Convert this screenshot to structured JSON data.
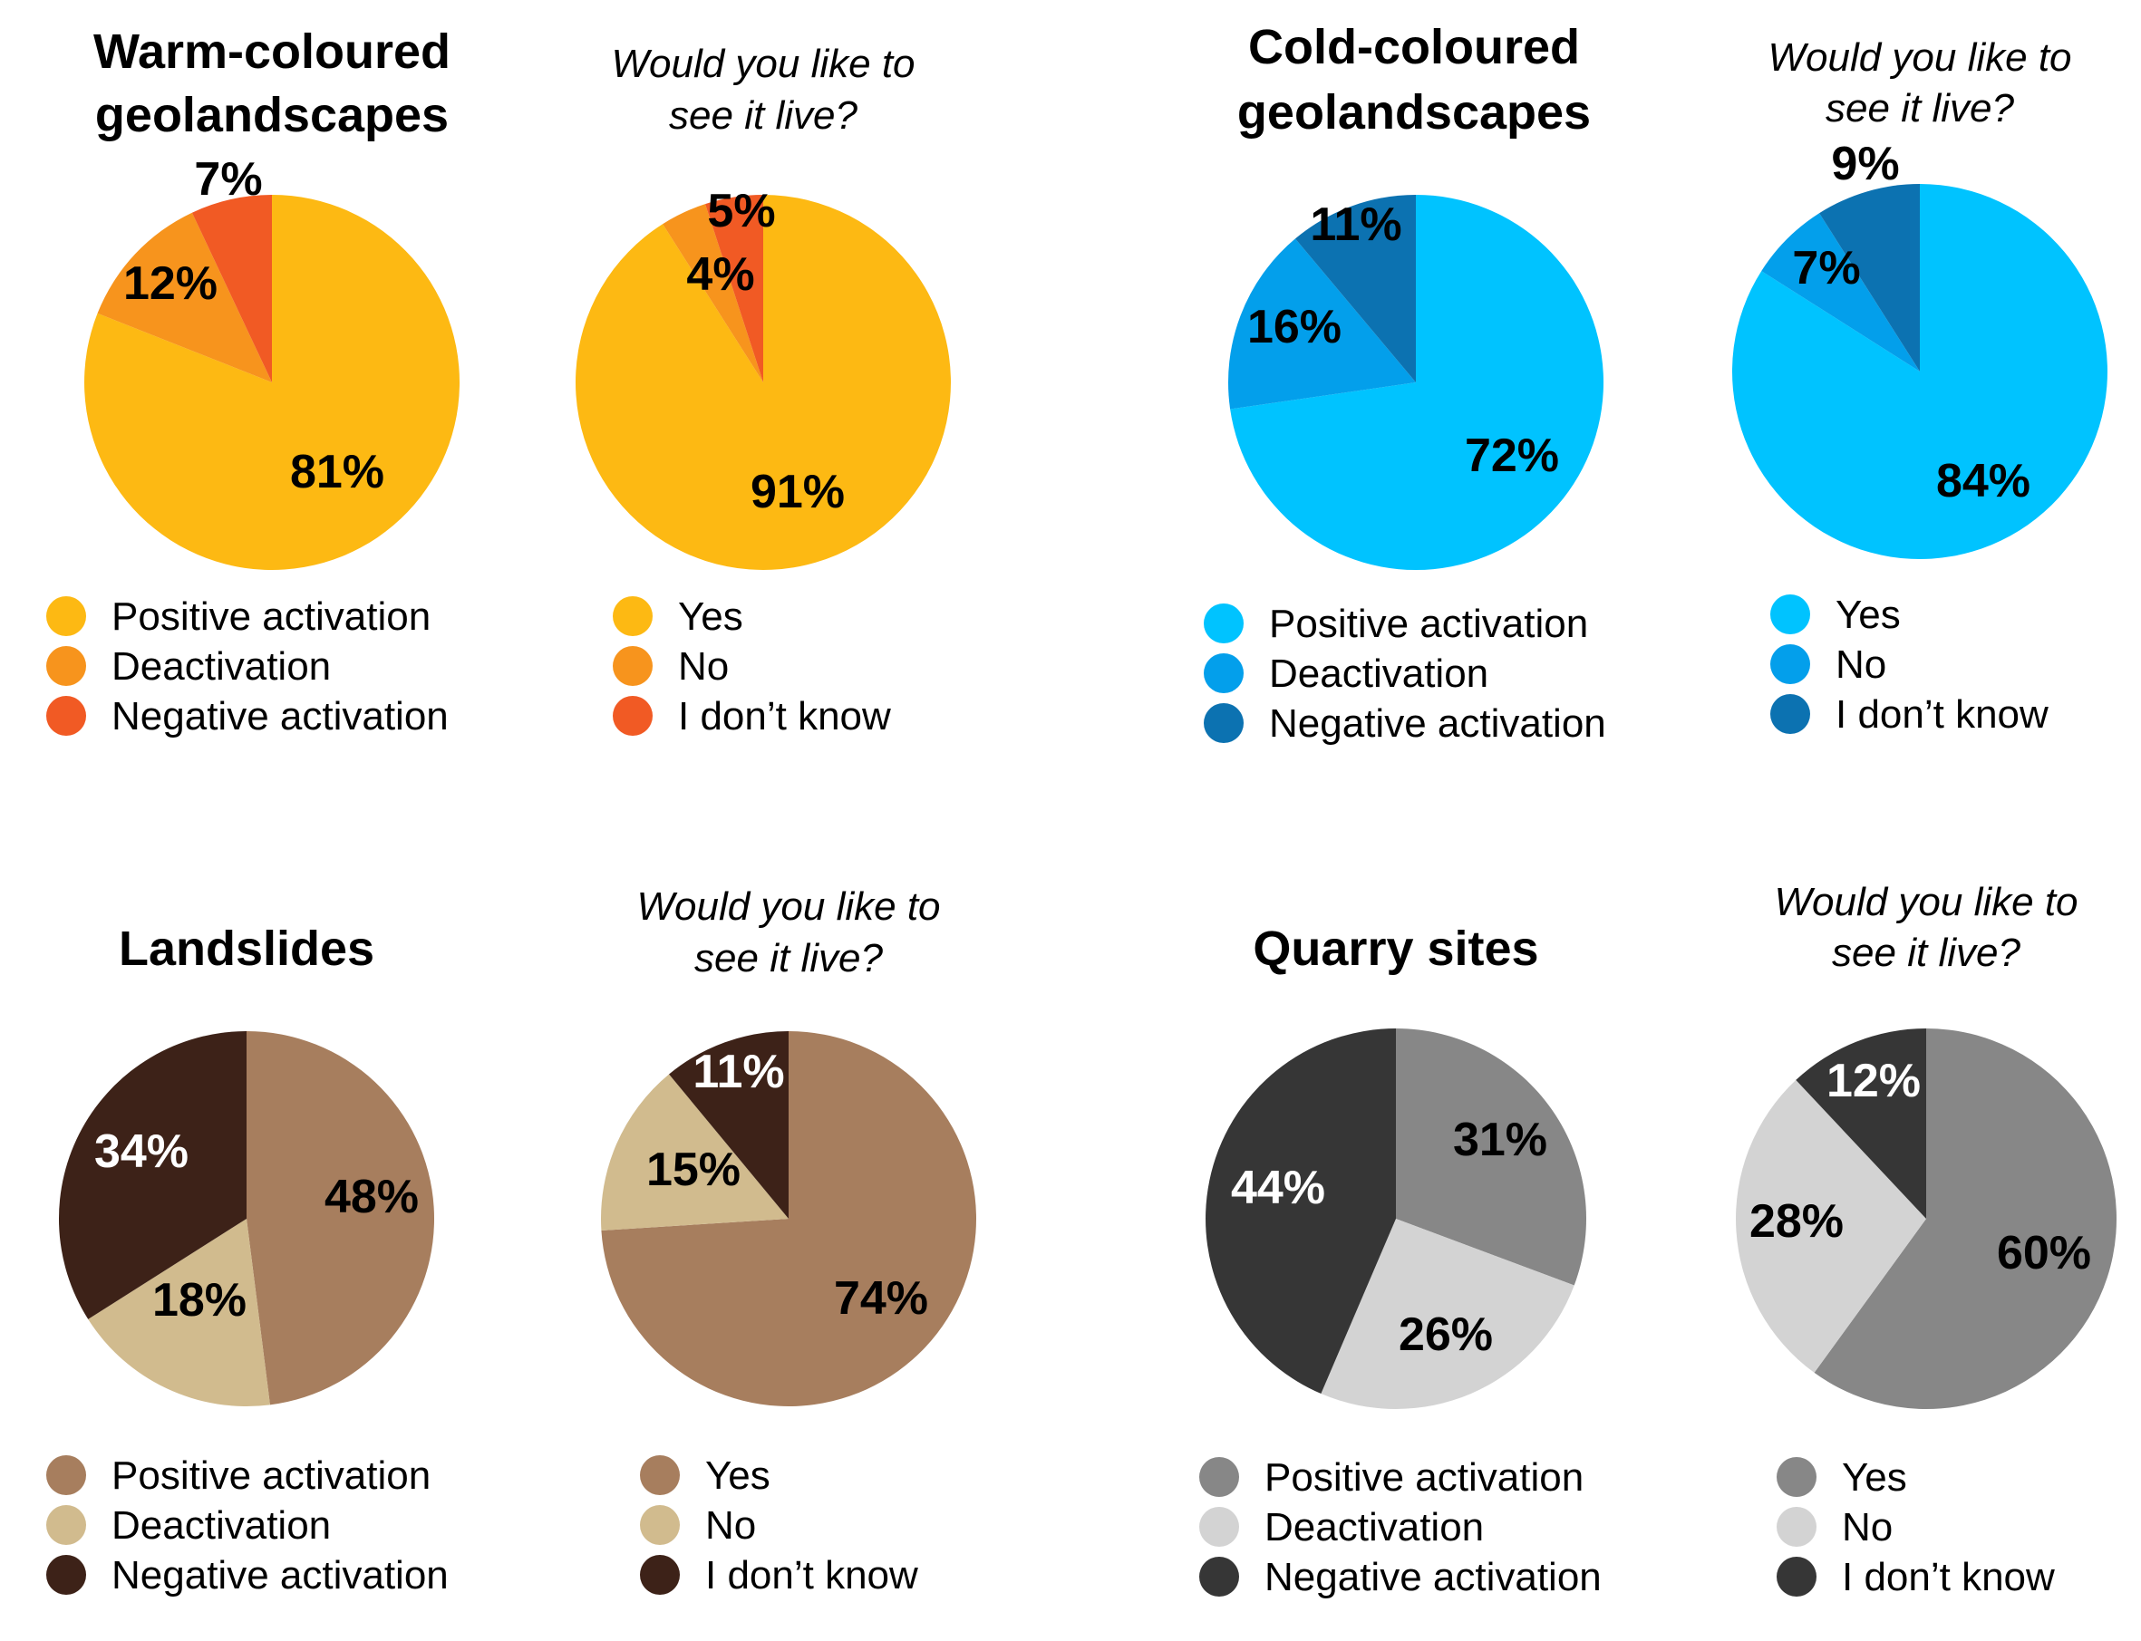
{
  "chart_data": [
    {
      "type": "pie",
      "panel": "warm",
      "position": "top-left",
      "title": [
        "Warm-coloured",
        "geolandscapes"
      ],
      "charts": [
        {
          "id": "warm-emotion",
          "title": [],
          "slices": [
            {
              "label": "Positive activation",
              "value": 81,
              "color": "#FDB913",
              "text_color": "#000000"
            },
            {
              "label": "Deactivation",
              "value": 12,
              "color": "#F7941D",
              "text_color": "#000000"
            },
            {
              "label": "Negative activation",
              "value": 7,
              "color": "#F15A24",
              "text_color": "#000000"
            }
          ]
        },
        {
          "id": "warm-live",
          "title": [
            "Would you like to",
            "see it live?"
          ],
          "slices": [
            {
              "label": "Yes",
              "value": 91,
              "color": "#FDB913",
              "text_color": "#000000"
            },
            {
              "label": "No",
              "value": 4,
              "color": "#F7941D",
              "text_color": "#000000"
            },
            {
              "label": "I don’t know",
              "value": 5,
              "color": "#F15A24",
              "text_color": "#000000"
            }
          ]
        }
      ]
    },
    {
      "type": "pie",
      "panel": "cold",
      "position": "top-right",
      "title": [
        "Cold-coloured",
        "geolandscapes"
      ],
      "charts": [
        {
          "id": "cold-emotion",
          "title": [],
          "slices": [
            {
              "label": "Positive activation",
              "value": 72,
              "color": "#00C3FF",
              "text_color": "#000000"
            },
            {
              "label": "Deactivation",
              "value": 16,
              "color": "#039FEB",
              "text_color": "#000000"
            },
            {
              "label": "Negative activation",
              "value": 11,
              "color": "#0C72B1",
              "text_color": "#000000"
            }
          ]
        },
        {
          "id": "cold-live",
          "title": [
            "Would you like to",
            "see it live?"
          ],
          "slices": [
            {
              "label": "Yes",
              "value": 84,
              "color": "#00C3FF",
              "text_color": "#000000"
            },
            {
              "label": "No",
              "value": 7,
              "color": "#039FEB",
              "text_color": "#000000"
            },
            {
              "label": "I don’t know",
              "value": 9,
              "color": "#0C72B1",
              "text_color": "#000000"
            }
          ]
        }
      ]
    },
    {
      "type": "pie",
      "panel": "landslides",
      "position": "bottom-left",
      "title": [
        "Landslides"
      ],
      "charts": [
        {
          "id": "landslides-emotion",
          "title": [],
          "slices": [
            {
              "label": "Positive activation",
              "value": 48,
              "color": "#A77E5E",
              "text_color": "#000000"
            },
            {
              "label": "Deactivation",
              "value": 18,
              "color": "#D1BB8E",
              "text_color": "#000000"
            },
            {
              "label": "Negative activation",
              "value": 34,
              "color": "#3D2218",
              "text_color": "#ffffff"
            }
          ]
        },
        {
          "id": "landslides-live",
          "title": [
            "Would you like to",
            "see it live?"
          ],
          "slices": [
            {
              "label": "Yes",
              "value": 74,
              "color": "#A77E5E",
              "text_color": "#000000"
            },
            {
              "label": "No",
              "value": 15,
              "color": "#D1BB8E",
              "text_color": "#000000"
            },
            {
              "label": "I don’t know",
              "value": 11,
              "color": "#3D2218",
              "text_color": "#ffffff"
            }
          ]
        }
      ]
    },
    {
      "type": "pie",
      "panel": "quarry",
      "position": "bottom-right",
      "title": [
        "Quarry sites"
      ],
      "charts": [
        {
          "id": "quarry-emotion",
          "title": [],
          "slices": [
            {
              "label": "Positive activation",
              "value": 31,
              "color": "#878787",
              "text_color": "#000000"
            },
            {
              "label": "Deactivation",
              "value": 26,
              "color": "#D3D3D3",
              "text_color": "#000000"
            },
            {
              "label": "Negative activation",
              "value": 44,
              "color": "#363636",
              "text_color": "#ffffff"
            }
          ]
        },
        {
          "id": "quarry-live",
          "title": [
            "Would you like to",
            "see it live?"
          ],
          "slices": [
            {
              "label": "Yes",
              "value": 60,
              "color": "#878787",
              "text_color": "#000000"
            },
            {
              "label": "No",
              "value": 28,
              "color": "#D3D3D3",
              "text_color": "#000000"
            },
            {
              "label": "I don’t know",
              "value": 12,
              "color": "#363636",
              "text_color": "#ffffff"
            }
          ]
        }
      ]
    }
  ]
}
